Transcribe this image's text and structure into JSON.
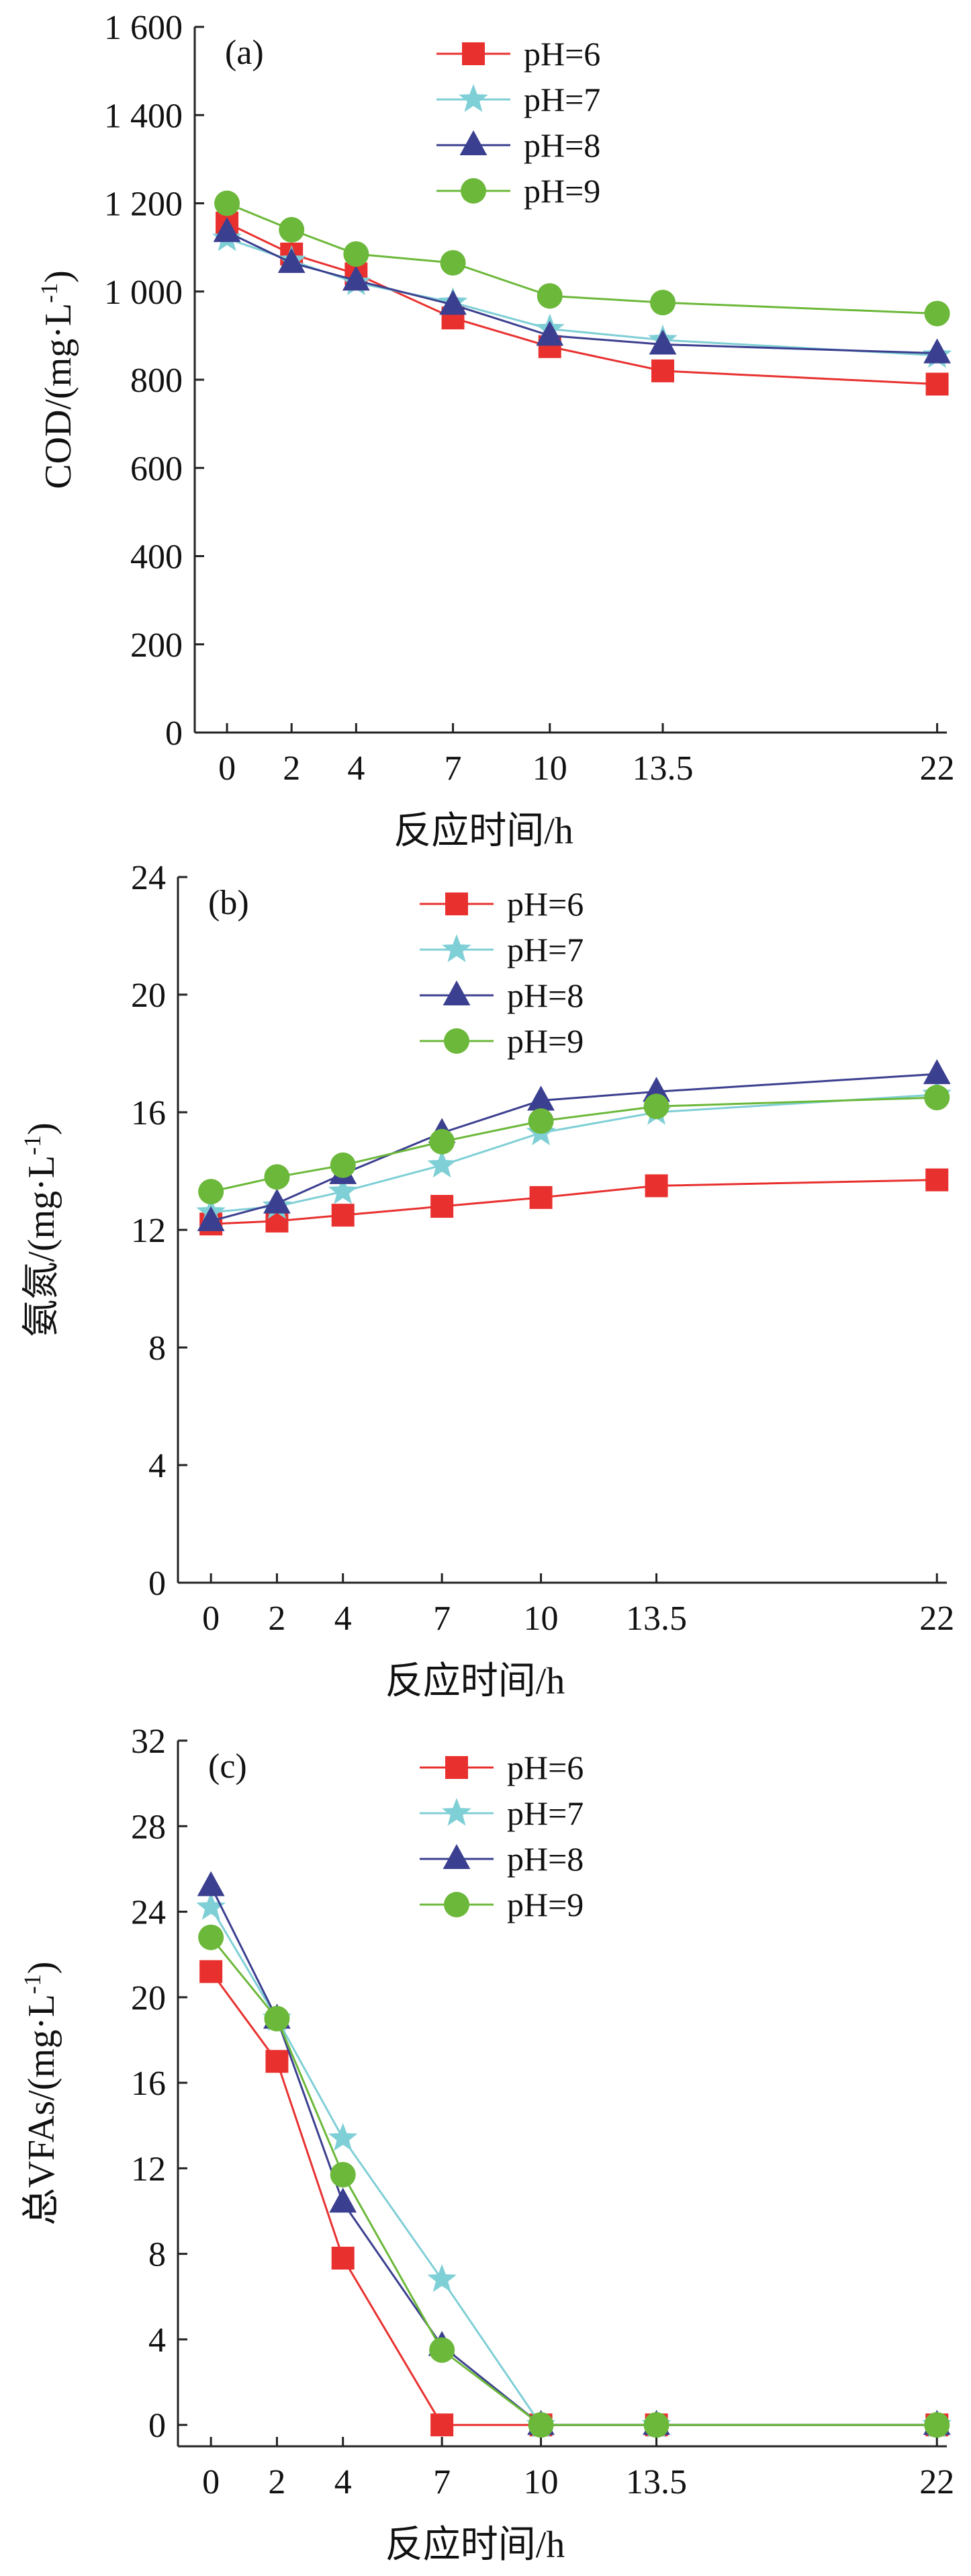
{
  "colors": {
    "pH6": "#e8312f",
    "pH7": "#7fcfd6",
    "pH8": "#3b3f8f",
    "pH9": "#6cb83a"
  },
  "chart_data": [
    {
      "type": "line",
      "panel_label": "(a)",
      "xlabel": "反应时间/h",
      "ylabel": "COD/(mg·L-1)",
      "ylabel_main": "COD/(mg·L",
      "ylabel_sup": "-1",
      "ylabel_tail": ")",
      "x": [
        0,
        2,
        4,
        7,
        10,
        13.5,
        22
      ],
      "x_tick_labels": [
        "0",
        "2",
        "4",
        "7",
        "10",
        "13.5",
        "22"
      ],
      "xlim": [
        -1,
        22.3
      ],
      "ylim": [
        0,
        1600
      ],
      "y_ticks": [
        0,
        200,
        400,
        600,
        800,
        1000,
        1200,
        1400,
        1600
      ],
      "y_tick_labels": [
        "0",
        "200",
        "400",
        "600",
        "800",
        "1 000",
        "1 200",
        "1 400",
        "1 600"
      ],
      "legend_position": "top-center",
      "series": [
        {
          "name": "pH=6",
          "marker": "square",
          "color": "#e8312f",
          "values": [
            1155,
            1085,
            1040,
            940,
            875,
            820,
            790
          ]
        },
        {
          "name": "pH=7",
          "marker": "star",
          "color": "#7fcfd6",
          "values": [
            1120,
            1070,
            1020,
            975,
            915,
            890,
            855
          ]
        },
        {
          "name": "pH=8",
          "marker": "triangle",
          "color": "#3b3f8f",
          "values": [
            1135,
            1065,
            1025,
            970,
            900,
            880,
            860
          ]
        },
        {
          "name": "pH=9",
          "marker": "circle",
          "color": "#6cb83a",
          "values": [
            1200,
            1140,
            1085,
            1065,
            990,
            975,
            950
          ]
        }
      ]
    },
    {
      "type": "line",
      "panel_label": "(b)",
      "xlabel": "反应时间/h",
      "ylabel": "氨氮/(mg·L-1)",
      "ylabel_main": "氨氮/(mg·L",
      "ylabel_sup": "-1",
      "ylabel_tail": ")",
      "x": [
        0,
        2,
        4,
        7,
        10,
        13.5,
        22
      ],
      "x_tick_labels": [
        "0",
        "2",
        "4",
        "7",
        "10",
        "13.5",
        "22"
      ],
      "xlim": [
        -1,
        22.3
      ],
      "ylim": [
        0,
        24
      ],
      "y_ticks": [
        0,
        4,
        8,
        12,
        16,
        20,
        24
      ],
      "y_tick_labels": [
        "0",
        "4",
        "8",
        "12",
        "16",
        "20",
        "24"
      ],
      "legend_position": "top-center",
      "series": [
        {
          "name": "pH=6",
          "marker": "square",
          "color": "#e8312f",
          "values": [
            12.2,
            12.3,
            12.5,
            12.8,
            13.1,
            13.5,
            13.7
          ]
        },
        {
          "name": "pH=7",
          "marker": "star",
          "color": "#7fcfd6",
          "values": [
            12.6,
            12.8,
            13.3,
            14.2,
            15.3,
            16.0,
            16.6
          ]
        },
        {
          "name": "pH=8",
          "marker": "triangle",
          "color": "#3b3f8f",
          "values": [
            12.3,
            12.9,
            13.9,
            15.3,
            16.4,
            16.7,
            17.3
          ]
        },
        {
          "name": "pH=9",
          "marker": "circle",
          "color": "#6cb83a",
          "values": [
            13.3,
            13.8,
            14.2,
            15.0,
            15.7,
            16.2,
            16.5
          ]
        }
      ]
    },
    {
      "type": "line",
      "panel_label": "(c)",
      "xlabel": "反应时间/h",
      "ylabel": "总VFAs/(mg·L-1)",
      "ylabel_main": "总VFAs/(mg·L",
      "ylabel_sup": "-1",
      "ylabel_tail": ")",
      "x": [
        0,
        2,
        4,
        7,
        10,
        13.5,
        22
      ],
      "x_tick_labels": [
        "0",
        "2",
        "4",
        "7",
        "10",
        "13.5",
        "22"
      ],
      "xlim": [
        -1,
        22.3
      ],
      "ylim": [
        -1,
        32
      ],
      "y_ticks": [
        0,
        4,
        8,
        12,
        16,
        20,
        24,
        28,
        32
      ],
      "y_tick_labels": [
        "0",
        "4",
        "8",
        "12",
        "16",
        "20",
        "24",
        "28",
        "32"
      ],
      "legend_position": "top-center",
      "series": [
        {
          "name": "pH=6",
          "marker": "square",
          "color": "#e8312f",
          "values": [
            21.2,
            17.0,
            7.8,
            0,
            0,
            0,
            0
          ]
        },
        {
          "name": "pH=7",
          "marker": "star",
          "color": "#7fcfd6",
          "values": [
            24.2,
            19.0,
            13.4,
            6.8,
            0,
            0,
            0
          ]
        },
        {
          "name": "pH=8",
          "marker": "triangle",
          "color": "#3b3f8f",
          "values": [
            25.2,
            19.0,
            10.4,
            3.7,
            0,
            0,
            0
          ]
        },
        {
          "name": "pH=9",
          "marker": "circle",
          "color": "#6cb83a",
          "values": [
            22.8,
            19.0,
            11.7,
            3.5,
            0,
            0,
            0
          ]
        }
      ]
    }
  ]
}
